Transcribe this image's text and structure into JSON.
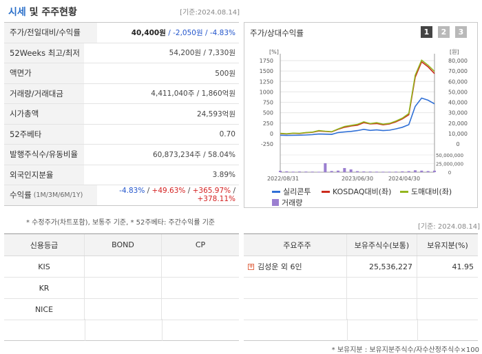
{
  "header": {
    "title_prefix": "시세",
    "title_rest": " 및 주주현황",
    "date": "[기준:2024.08.14]"
  },
  "stats": [
    {
      "label": "주가/전일대비/수익률",
      "price": "40,400원",
      "change": " / -2,050원",
      "rate": " / -4.83%"
    },
    {
      "label": "52Weeks 최고/최저",
      "value": "54,200원 / 7,330원"
    },
    {
      "label": "액면가",
      "value": "500원"
    },
    {
      "label": "거래량/거래대금",
      "value": "4,411,040주 / 1,860억원"
    },
    {
      "label": "시가총액",
      "value": "24,593억원"
    },
    {
      "label": "52주베타",
      "value": "0.70"
    },
    {
      "label": "발행주식수/유동비율",
      "value": "60,873,234주 / 58.04%"
    },
    {
      "label": "외국인지분율",
      "value": "3.89%"
    },
    {
      "label": "수익률",
      "label_small": "(1M/3M/6M/1Y)",
      "r1": "-4.83%",
      "r2": "+49.63%",
      "r3": "+365.97%",
      "r4": "+378.11%"
    }
  ],
  "footnote": "* 수정주가(차트포함), 보통주 기준, * 52주베타: 주간수익률 기준",
  "chart": {
    "title": "주가/상대수익률",
    "period_buttons": [
      "1",
      "2",
      "3"
    ],
    "left_unit": "[%]",
    "right_unit": "[원]",
    "legend": [
      "실리콘투",
      "KOSDAQ대비(좌)",
      "도매대비(좌)",
      "거래량"
    ],
    "colors": {
      "stock": "#2f6fd6",
      "kosdaq": "#cc2b1d",
      "wholesale": "#93b51e",
      "volume": "#9b7fd0"
    }
  },
  "chart_data": {
    "type": "line",
    "x_tick_labels": [
      "2022/08/31",
      "2023/06/30",
      "2024/04/30"
    ],
    "left_axis": {
      "ticks": [
        "1750",
        "1500",
        "1250",
        "1000",
        "750",
        "500",
        "250",
        "0",
        "-250"
      ],
      "range": [
        -250,
        1750
      ]
    },
    "right_axis": {
      "ticks": [
        "80,000",
        "70,000",
        "60,000",
        "50,000",
        "40,000",
        "30,000",
        "20,000",
        "10,000",
        "0"
      ],
      "range": [
        0,
        80000
      ]
    },
    "volume_axis": {
      "ticks": [
        "50,000,000",
        "25,000,000",
        "0"
      ],
      "range": [
        0,
        50000000
      ]
    },
    "series": [
      {
        "name": "실리콘투",
        "axis": "right",
        "values": [
          8400,
          8200,
          8300,
          8400,
          8600,
          8900,
          9500,
          9400,
          9100,
          11000,
          11500,
          12000,
          12800,
          14000,
          13000,
          13500,
          12800,
          13200,
          14500,
          16000,
          18500,
          36000,
          44000,
          42000,
          38500
        ]
      },
      {
        "name": "KOSDAQ대비(좌)",
        "axis": "left",
        "values": [
          0,
          -10,
          5,
          0,
          20,
          30,
          60,
          50,
          40,
          100,
          150,
          180,
          200,
          260,
          230,
          240,
          210,
          230,
          280,
          350,
          450,
          1350,
          1720,
          1600,
          1440
        ]
      },
      {
        "name": "도매대비(좌)",
        "axis": "left",
        "values": [
          5,
          -5,
          10,
          5,
          25,
          35,
          70,
          55,
          45,
          110,
          170,
          195,
          220,
          280,
          240,
          260,
          225,
          245,
          300,
          370,
          480,
          1400,
          1760,
          1640,
          1490
        ]
      }
    ],
    "volume": [
      4000000,
      2500000,
      1500000,
      2000000,
      1800000,
      1600000,
      1200000,
      26000000,
      3500000,
      4500000,
      12000000,
      8000000,
      3000000,
      2200000,
      1800000,
      1500000,
      1400000,
      1300000,
      1600000,
      2400000,
      3000000,
      5500000,
      4500000,
      3200000,
      4400000
    ]
  },
  "date2": "[기준: 2024.08.14]",
  "credit": {
    "headers": [
      "신용등급",
      "BOND",
      "CP"
    ],
    "rows": [
      [
        "KIS",
        "",
        ""
      ],
      [
        "KR",
        "",
        ""
      ],
      [
        "NICE",
        "",
        ""
      ]
    ]
  },
  "holders": {
    "headers": [
      "주요주주",
      "보유주식수(보통)",
      "보유지분(%)"
    ],
    "rows": [
      [
        "김성운 외 6인",
        "25,536,227",
        "41.95"
      ]
    ]
  },
  "note2": "* 보유지분 : 보유지분주식수/자수산정주식수×100"
}
